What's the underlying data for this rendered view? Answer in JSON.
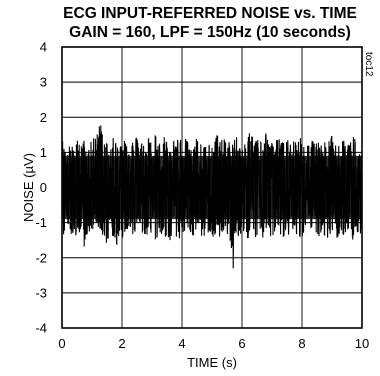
{
  "chart_data": {
    "type": "line",
    "title": "ECG INPUT-REFERRED NOISE vs. TIME",
    "subtitle": "GAIN = 160, LPF = 150Hz (10 seconds)",
    "xlabel": "TIME (s)",
    "ylabel": "NOISE (µV)",
    "figure_code": "toc12",
    "xlim": [
      0,
      10
    ],
    "ylim": [
      -4,
      4
    ],
    "xticks": [
      "0",
      "2",
      "4",
      "6",
      "8",
      "10"
    ],
    "yticks": [
      "4",
      "3",
      "2",
      "1",
      "0",
      "-1",
      "-2",
      "-3",
      "-4"
    ],
    "grid": true,
    "color": "#000000",
    "series": [
      {
        "x": [
          0.0,
          0.1,
          0.2,
          0.3,
          0.4,
          0.5,
          0.6,
          0.7,
          0.8,
          0.9,
          1.0,
          1.1,
          1.2,
          1.3,
          1.4,
          1.5,
          1.6,
          1.7,
          1.8,
          1.9,
          2.0,
          2.1,
          2.2,
          2.3,
          2.4,
          2.5,
          2.6,
          2.7,
          2.8,
          2.9,
          3.0,
          3.1,
          3.2,
          3.3,
          3.4,
          3.5,
          3.6,
          3.7,
          3.8,
          3.9,
          4.0,
          4.1,
          4.2,
          4.3,
          4.4,
          4.5,
          4.6,
          4.7,
          4.8,
          4.9,
          5.0,
          5.1,
          5.2,
          5.3,
          5.4,
          5.5,
          5.6,
          5.7,
          5.8,
          5.9,
          6.0,
          6.1,
          6.2,
          6.3,
          6.4,
          6.5,
          6.6,
          6.7,
          6.8,
          6.9,
          7.0,
          7.1,
          7.2,
          7.3,
          7.4,
          7.5,
          7.6,
          7.7,
          7.8,
          7.9,
          8.0,
          8.1,
          8.2,
          8.3,
          8.4,
          8.5,
          8.6,
          8.7,
          8.8,
          8.9,
          9.0,
          9.1,
          9.2,
          9.3,
          9.4,
          9.5,
          9.6,
          9.7,
          9.8,
          9.9,
          10.0
        ],
        "max": [
          1.4,
          1.2,
          1.5,
          1.1,
          1.3,
          1.4,
          1.2,
          1.5,
          1.1,
          1.3,
          1.3,
          1.5,
          1.6,
          2.2,
          1.4,
          1.3,
          1.2,
          1.5,
          1.3,
          1.4,
          1.2,
          1.5,
          1.1,
          1.4,
          1.3,
          1.5,
          1.2,
          1.4,
          1.3,
          1.5,
          1.2,
          1.6,
          1.3,
          1.4,
          1.5,
          1.3,
          1.2,
          1.4,
          1.3,
          1.6,
          1.2,
          1.5,
          1.3,
          1.4,
          1.2,
          1.5,
          1.3,
          1.4,
          1.3,
          1.5,
          1.2,
          1.4,
          1.6,
          1.3,
          1.5,
          1.2,
          1.4,
          1.3,
          1.5,
          1.2,
          1.4,
          1.3,
          1.5,
          1.7,
          1.3,
          1.4,
          1.5,
          1.2,
          1.6,
          1.3,
          1.4,
          1.2,
          1.5,
          1.3,
          1.4,
          1.5,
          1.2,
          1.4,
          1.3,
          1.5,
          1.3,
          1.4,
          1.2,
          1.5,
          1.3,
          1.4,
          1.2,
          1.5,
          1.3,
          1.4,
          1.5,
          1.2,
          1.4,
          1.3,
          1.5,
          1.2,
          1.4,
          1.6,
          1.3,
          1.4,
          1.5
        ],
        "min": [
          -1.3,
          -1.5,
          -1.2,
          -1.4,
          -1.3,
          -1.6,
          -1.2,
          -1.9,
          -1.4,
          -1.3,
          -1.5,
          -1.3,
          -1.4,
          -1.2,
          -1.5,
          -1.9,
          -1.3,
          -1.4,
          -1.7,
          -1.5,
          -1.8,
          -1.3,
          -1.4,
          -1.5,
          -1.3,
          -1.6,
          -1.4,
          -1.3,
          -1.5,
          -1.4,
          -1.3,
          -1.5,
          -1.4,
          -1.3,
          -1.5,
          -1.4,
          -1.6,
          -1.3,
          -1.4,
          -1.5,
          -1.3,
          -1.4,
          -1.5,
          -1.3,
          -1.4,
          -1.6,
          -1.3,
          -1.5,
          -1.4,
          -1.3,
          -1.5,
          -1.4,
          -1.3,
          -1.5,
          -1.4,
          -1.3,
          -1.6,
          -2.4,
          -1.4,
          -1.5,
          -1.3,
          -1.4,
          -1.5,
          -1.3,
          -1.4,
          -1.5,
          -1.3,
          -1.6,
          -1.4,
          -1.3,
          -1.5,
          -1.4,
          -1.3,
          -1.5,
          -1.4,
          -1.3,
          -1.6,
          -1.4,
          -1.3,
          -1.5,
          -1.4,
          -1.3,
          -1.5,
          -1.4,
          -1.3,
          -1.6,
          -1.4,
          -1.3,
          -1.5,
          -1.4,
          -1.3,
          -1.5,
          -1.4,
          -1.3,
          -1.6,
          -1.4,
          -1.3,
          -1.5,
          -1.4,
          -1.3,
          -1.5
        ]
      }
    ]
  }
}
